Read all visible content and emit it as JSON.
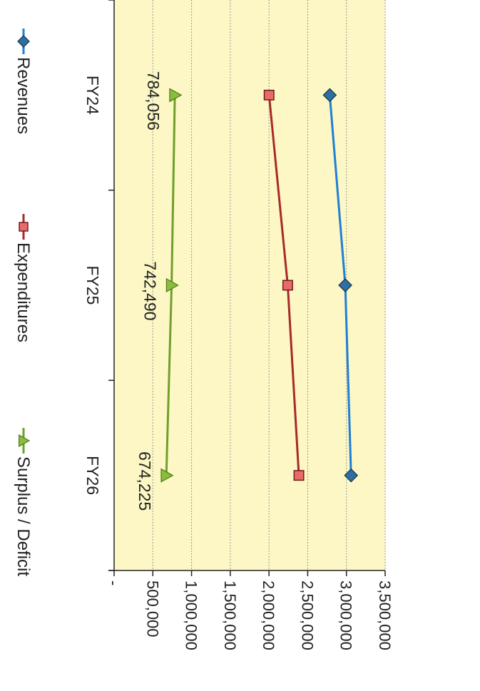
{
  "chart_data": {
    "type": "line",
    "categories": [
      "FY24",
      "FY25",
      "FY26"
    ],
    "series": [
      {
        "name": "Revenues",
        "values": [
          2785000,
          2985000,
          3060000
        ],
        "color": "#1e7fd6",
        "marker": "diamond",
        "marker_color": "#2d6fa3"
      },
      {
        "name": "Expenditures",
        "values": [
          2001000,
          2242000,
          2386000
        ],
        "color": "#a82a2a",
        "marker": "square",
        "marker_color": "#e86a6a"
      },
      {
        "name": "Surplus / Deficit",
        "values": [
          784056,
          742490,
          674225
        ],
        "color": "#6fa02c",
        "marker": "triangle",
        "marker_color": "#8cbc3c"
      }
    ],
    "data_labels": [
      "784,056",
      "742,490",
      "674,225"
    ],
    "y_ticks": [
      "-",
      "500,000",
      "1,000,000",
      "1,500,000",
      "2,000,000",
      "2,500,000",
      "3,000,000",
      "3,500,000"
    ],
    "ylim": [
      0,
      3500000
    ],
    "grid": true,
    "orientation": "rotated 90° clockwise",
    "plot_background": "#fcf7c4",
    "legend_position": "bottom"
  }
}
